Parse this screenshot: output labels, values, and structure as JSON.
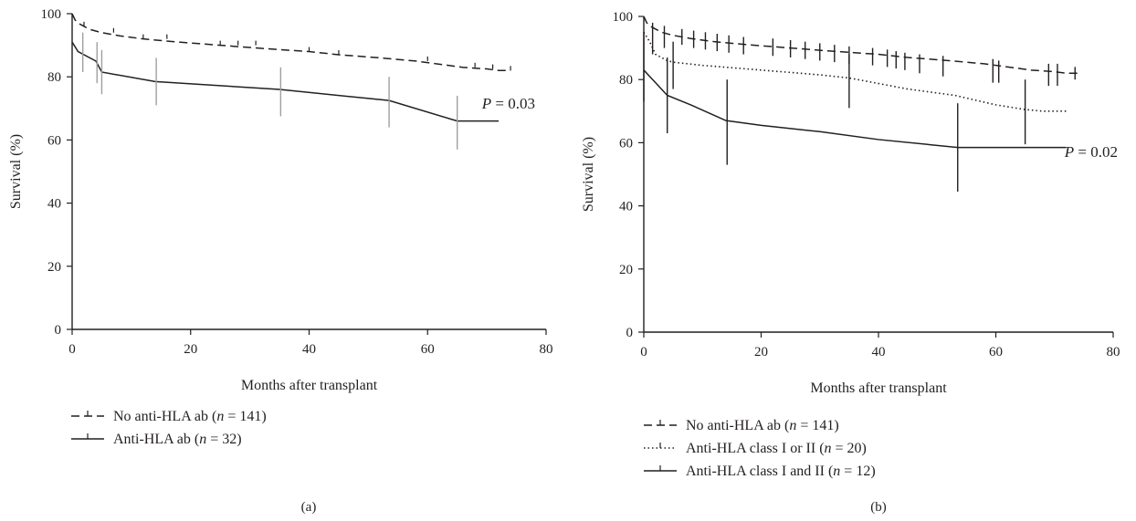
{
  "chart_data": [
    {
      "type": "line",
      "panel_label": "(a)",
      "xlabel": "Months after transplant",
      "ylabel": "Survival (%)",
      "xlim": [
        0,
        80
      ],
      "ylim": [
        0,
        100
      ],
      "xticks": [
        "0",
        "20",
        "40",
        "60",
        "80"
      ],
      "yticks": [
        "0",
        "20",
        "40",
        "60",
        "80",
        "100"
      ],
      "p_value_italic": "P",
      "p_value_rest": " = 0.03",
      "legend_placement": "below",
      "series": [
        {
          "name_prefix": "No anti-HLA ab (",
          "name_italic": "n",
          "name_suffix": " = 141)",
          "style": "dashed",
          "color": "#231f20",
          "x": [
            0,
            0.5,
            1,
            2,
            3,
            5,
            8,
            12,
            18,
            25,
            32,
            40,
            45,
            52,
            58,
            62,
            66,
            70,
            72,
            74
          ],
          "y": [
            100,
            98,
            97,
            96,
            95,
            94,
            93,
            92,
            91,
            90,
            89,
            88,
            87,
            86,
            85,
            84,
            83,
            82.5,
            82,
            82
          ],
          "censor_x": [
            2,
            7,
            12,
            16,
            25,
            28,
            31,
            40,
            45,
            60,
            68,
            71,
            74
          ]
        },
        {
          "name_prefix": "Anti-HLA ab (",
          "name_italic": "n",
          "name_suffix": " = 32)",
          "style": "solid",
          "color": "#231f20",
          "x": [
            0,
            1,
            4,
            5,
            14,
            35,
            53.5,
            65,
            72
          ],
          "y": [
            91,
            88,
            85,
            81.5,
            78.5,
            76,
            72.5,
            66,
            66
          ],
          "error_bars": [
            {
              "x": 1.8,
              "low": 81.5,
              "high": 94
            },
            {
              "x": 4.2,
              "low": 78,
              "high": 91
            },
            {
              "x": 5,
              "low": 74.5,
              "high": 88.5
            },
            {
              "x": 14.2,
              "low": 71,
              "high": 86
            },
            {
              "x": 35.2,
              "low": 67.5,
              "high": 83
            },
            {
              "x": 53.5,
              "low": 64,
              "high": 80
            },
            {
              "x": 65,
              "low": 57,
              "high": 74
            }
          ]
        }
      ]
    },
    {
      "type": "line",
      "panel_label": "(b)",
      "xlabel": "Months after transplant",
      "ylabel": "Survival (%)",
      "xlim": [
        0,
        80
      ],
      "ylim": [
        0,
        100
      ],
      "xticks": [
        "0",
        "20",
        "40",
        "60",
        "80"
      ],
      "yticks": [
        "0",
        "20",
        "40",
        "60",
        "80",
        "100"
      ],
      "p_value_italic": "P",
      "p_value_rest": " = 0.02",
      "legend_placement": "below",
      "series": [
        {
          "name_prefix": "No anti-HLA ab (",
          "name_italic": "n",
          "name_suffix": " = 141)",
          "style": "dashed",
          "color": "#231f20",
          "x": [
            0,
            0.5,
            1,
            2,
            3,
            5,
            8,
            12,
            18,
            25,
            32,
            40,
            45,
            52,
            58,
            62,
            66,
            70,
            72,
            74
          ],
          "y": [
            100,
            98,
            97,
            96,
            95,
            94,
            93,
            92,
            91,
            90,
            89,
            88,
            87,
            86,
            85,
            84,
            83,
            82.5,
            82,
            82
          ],
          "error_bars": [
            {
              "x": 1.5,
              "low": 88,
              "high": 98
            },
            {
              "x": 3.5,
              "low": 90,
              "high": 97
            },
            {
              "x": 6.5,
              "low": 91,
              "high": 96
            },
            {
              "x": 8.5,
              "low": 90,
              "high": 95.5
            },
            {
              "x": 10.5,
              "low": 89.5,
              "high": 95
            },
            {
              "x": 12.5,
              "low": 89,
              "high": 94.5
            },
            {
              "x": 14.5,
              "low": 88.5,
              "high": 94
            },
            {
              "x": 17,
              "low": 88,
              "high": 93.5
            },
            {
              "x": 22,
              "low": 87.5,
              "high": 93
            },
            {
              "x": 25,
              "low": 87,
              "high": 92.5
            },
            {
              "x": 27.5,
              "low": 86.5,
              "high": 92
            },
            {
              "x": 30,
              "low": 86,
              "high": 91.5
            },
            {
              "x": 32.5,
              "low": 85.5,
              "high": 91
            },
            {
              "x": 35,
              "low": 85,
              "high": 90.5
            },
            {
              "x": 39,
              "low": 84.5,
              "high": 90
            },
            {
              "x": 41.5,
              "low": 84,
              "high": 89.5
            },
            {
              "x": 43,
              "low": 83.5,
              "high": 89
            },
            {
              "x": 44.5,
              "low": 83,
              "high": 88.5
            },
            {
              "x": 47,
              "low": 82,
              "high": 88
            },
            {
              "x": 51,
              "low": 81,
              "high": 87.5
            },
            {
              "x": 59.5,
              "low": 79,
              "high": 86.5
            },
            {
              "x": 60.5,
              "low": 79,
              "high": 86
            },
            {
              "x": 69,
              "low": 78,
              "high": 85
            },
            {
              "x": 70.5,
              "low": 78,
              "high": 85
            },
            {
              "x": 73.5,
              "low": 80,
              "high": 84
            }
          ]
        },
        {
          "name_prefix": "Anti-HLA class I or II (",
          "name_italic": "n",
          "name_suffix": " = 20)",
          "style": "dotted",
          "color": "#231f20",
          "x": [
            0,
            1,
            2,
            4,
            5,
            10,
            20,
            30,
            35,
            45,
            53,
            60,
            65,
            68,
            70,
            72
          ],
          "y": [
            95,
            92,
            88,
            86,
            85.5,
            84.5,
            83,
            81.5,
            80.5,
            77,
            75,
            72,
            70.5,
            70,
            70,
            70
          ],
          "error_bars": [
            {
              "x": 5,
              "low": 77,
              "high": 92
            },
            {
              "x": 35,
              "low": 71,
              "high": 88
            }
          ]
        },
        {
          "name_prefix": "Anti-HLA class I and II (",
          "name_italic": "n",
          "name_suffix": " = 12)",
          "style": "solid",
          "color": "#231f20",
          "x": [
            0,
            1,
            2,
            4,
            8,
            14,
            20,
            30,
            40,
            53.5,
            60,
            65,
            72
          ],
          "y": [
            83,
            81,
            79,
            75,
            72,
            67,
            65.5,
            63.5,
            61,
            58.5,
            58.5,
            58.5,
            58.5
          ],
          "error_bars": [
            {
              "x": 0,
              "low": 73,
              "high": 95
            },
            {
              "x": 4,
              "low": 63,
              "high": 87
            },
            {
              "x": 14.2,
              "low": 53,
              "high": 80
            },
            {
              "x": 53.5,
              "low": 44.5,
              "high": 72.5
            },
            {
              "x": 65,
              "low": 59.5,
              "high": 80
            }
          ]
        }
      ]
    }
  ]
}
